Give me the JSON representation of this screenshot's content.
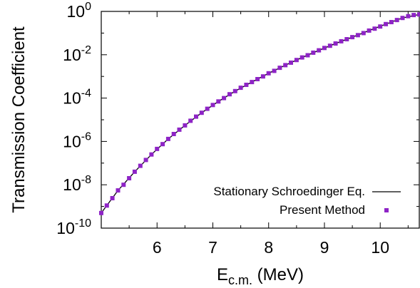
{
  "chart_data": {
    "type": "scatter",
    "title": "",
    "xlabel": {
      "main": "E",
      "sub": "c.m.",
      "rest": " (MeV)"
    },
    "ylabel": "Transmission Coefficient",
    "xlim": [
      5.0,
      10.7
    ],
    "ylim_log10": [
      -10,
      0
    ],
    "y_scale": "log",
    "grid": false,
    "legend_position": "bottom-right",
    "x_tick_labels": [
      "6",
      "7",
      "8",
      "9",
      "10"
    ],
    "x_ticks": [
      6,
      7,
      8,
      9,
      10
    ],
    "y_tick_labels": [
      {
        "base": "10",
        "exp": "0"
      },
      {
        "base": "10",
        "exp": "-2"
      },
      {
        "base": "10",
        "exp": "-4"
      },
      {
        "base": "10",
        "exp": "-6"
      },
      {
        "base": "10",
        "exp": "-8"
      },
      {
        "base": "10",
        "exp": "-10"
      }
    ],
    "y_ticks_log10": [
      0,
      -2,
      -4,
      -6,
      -8,
      -10
    ],
    "series": [
      {
        "name": "Stationary Schroedinger Eq.",
        "style": "line",
        "color": "#000000",
        "x": [
          5.0,
          5.3,
          5.6,
          5.9,
          6.2,
          6.5,
          6.8,
          7.1,
          7.4,
          7.7,
          8.0,
          8.3,
          8.6,
          8.9,
          9.2,
          9.5,
          9.8,
          10.1,
          10.4,
          10.7
        ],
        "y": [
          5e-10,
          5.5e-09,
          4e-08,
          2.5e-07,
          1.3e-06,
          5.5e-06,
          2.1e-05,
          7e-05,
          0.00021,
          0.00055,
          0.0014,
          0.0033,
          0.0075,
          0.016,
          0.033,
          0.065,
          0.13,
          0.26,
          0.5,
          0.72
        ]
      },
      {
        "name": "Present Method",
        "style": "markers",
        "color": "#8e24c6",
        "x": [
          5.0,
          5.1,
          5.2,
          5.3,
          5.4,
          5.5,
          5.6,
          5.7,
          5.8,
          5.9,
          6.0,
          6.1,
          6.2,
          6.3,
          6.4,
          6.5,
          6.6,
          6.7,
          6.8,
          6.9,
          7.0,
          7.1,
          7.2,
          7.3,
          7.4,
          7.5,
          7.6,
          7.7,
          7.8,
          7.9,
          8.0,
          8.1,
          8.2,
          8.3,
          8.4,
          8.5,
          8.6,
          8.7,
          8.8,
          8.9,
          9.0,
          9.1,
          9.2,
          9.3,
          9.4,
          9.5,
          9.6,
          9.7,
          9.8,
          9.9,
          10.0,
          10.1,
          10.2,
          10.3,
          10.4,
          10.5,
          10.6,
          10.7
        ],
        "y": [
          5e-10,
          1.1e-09,
          2.4e-09,
          5.5e-09,
          1e-08,
          2e-08,
          4e-08,
          7.5e-08,
          1.4e-07,
          2.5e-07,
          4.5e-07,
          7.5e-07,
          1.3e-06,
          2.2e-06,
          3.5e-06,
          5.5e-06,
          9e-06,
          1.4e-05,
          2.1e-05,
          3.2e-05,
          4.8e-05,
          7e-05,
          0.0001,
          0.00015,
          0.00021,
          0.0003,
          0.00041,
          0.00055,
          0.00075,
          0.001,
          0.0014,
          0.0018,
          0.0025,
          0.0033,
          0.0043,
          0.0057,
          0.0075,
          0.0095,
          0.0125,
          0.016,
          0.0205,
          0.026,
          0.033,
          0.042,
          0.052,
          0.065,
          0.08,
          0.1,
          0.13,
          0.16,
          0.2,
          0.26,
          0.32,
          0.4,
          0.5,
          0.6,
          0.68,
          0.72
        ]
      }
    ]
  }
}
